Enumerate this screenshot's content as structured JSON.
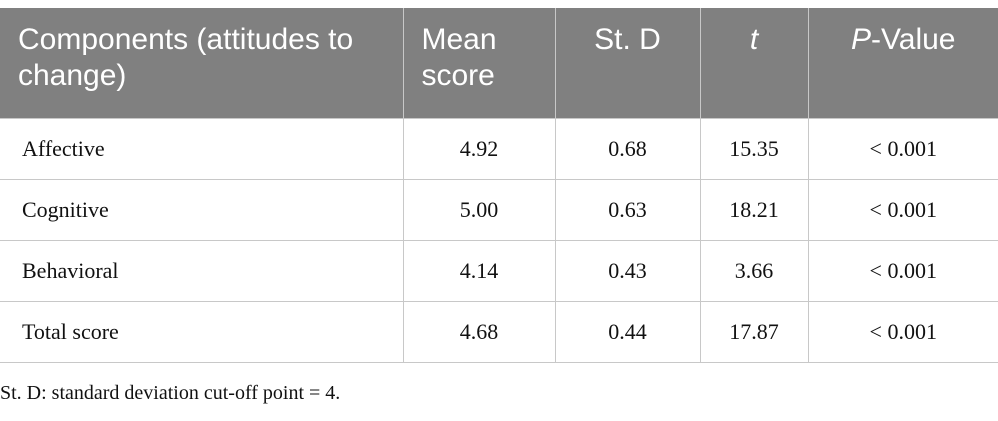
{
  "table": {
    "header": [
      "Components (attitudes to change)",
      "Mean score",
      "St. D",
      "t",
      [
        "P",
        "-Value"
      ]
    ],
    "rows": [
      [
        "Affective",
        "4.92",
        "0.68",
        "15.35",
        "< 0.001"
      ],
      [
        "Cognitive",
        "5.00",
        "0.63",
        "18.21",
        "< 0.001"
      ],
      [
        "Behavioral",
        "4.14",
        "0.43",
        "3.66",
        "< 0.001"
      ],
      [
        "Total score",
        "4.68",
        "0.44",
        "17.87",
        "< 0.001"
      ]
    ]
  },
  "footnote": "St. D: standard deviation cut-off point = 4."
}
